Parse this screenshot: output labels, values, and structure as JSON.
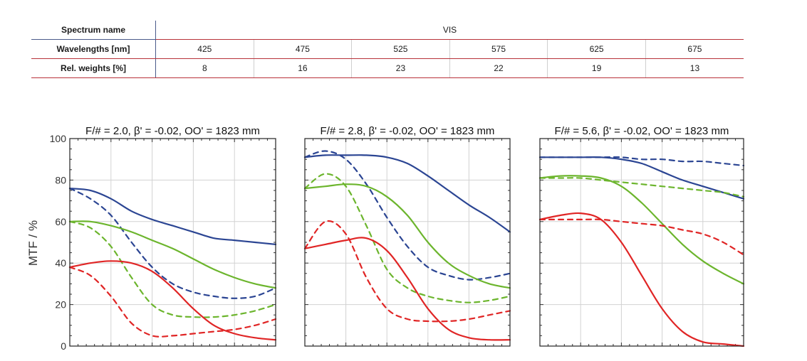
{
  "table": {
    "spectrum_label": "Spectrum name",
    "spectrum_value": "VIS",
    "wavelength_label": "Wavelengths [nm]",
    "wavelengths": [
      "425",
      "475",
      "525",
      "575",
      "625",
      "675"
    ],
    "weights_label": "Rel. weights [%]",
    "weights": [
      "8",
      "16",
      "23",
      "22",
      "19",
      "13"
    ]
  },
  "chart_data": {
    "type": "line",
    "ylabel": "MTF / %",
    "ylim": [
      0,
      100
    ],
    "yticks": [
      "0",
      "20",
      "40",
      "60",
      "80",
      "100"
    ],
    "grid": true,
    "colors": {
      "blue": "#2b4593",
      "green": "#6cb52d",
      "red": "#e02525"
    },
    "panels": [
      {
        "title": "F/# = 2.0, β' = -0.02, OO' = 1823 mm",
        "series": [
          {
            "color": "blue",
            "dash": false,
            "x": [
              0,
              0.1,
              0.2,
              0.3,
              0.4,
              0.5,
              0.6,
              0.7,
              0.8,
              0.9,
              1.0
            ],
            "y": [
              76,
              75,
              71,
              65,
              61,
              58,
              55,
              52,
              51,
              50,
              49
            ]
          },
          {
            "color": "blue",
            "dash": true,
            "x": [
              0,
              0.1,
              0.2,
              0.3,
              0.4,
              0.5,
              0.6,
              0.7,
              0.8,
              0.9,
              1.0
            ],
            "y": [
              76,
              71,
              63,
              50,
              38,
              30,
              26,
              24,
              23,
              24,
              28
            ]
          },
          {
            "color": "green",
            "dash": false,
            "x": [
              0,
              0.1,
              0.2,
              0.3,
              0.4,
              0.5,
              0.6,
              0.7,
              0.8,
              0.9,
              1.0
            ],
            "y": [
              60,
              60,
              58,
              55,
              51,
              47,
              42,
              37,
              33,
              30,
              28
            ]
          },
          {
            "color": "green",
            "dash": true,
            "x": [
              0,
              0.1,
              0.2,
              0.3,
              0.4,
              0.5,
              0.6,
              0.7,
              0.8,
              0.9,
              1.0
            ],
            "y": [
              60,
              57,
              48,
              33,
              20,
              15,
              14,
              14,
              15,
              17,
              20
            ]
          },
          {
            "color": "red",
            "dash": false,
            "x": [
              0,
              0.1,
              0.2,
              0.3,
              0.4,
              0.5,
              0.6,
              0.7,
              0.8,
              0.9,
              1.0
            ],
            "y": [
              38,
              40,
              41,
              40,
              36,
              28,
              18,
              10,
              6,
              4,
              3
            ]
          },
          {
            "color": "red",
            "dash": true,
            "x": [
              0,
              0.1,
              0.2,
              0.3,
              0.4,
              0.5,
              0.6,
              0.7,
              0.8,
              0.9,
              1.0
            ],
            "y": [
              38,
              34,
              24,
              11,
              5,
              5,
              6,
              7,
              8,
              10,
              13
            ]
          }
        ]
      },
      {
        "title": "F/# = 2.8, β' = -0.02, OO' = 1823 mm",
        "series": [
          {
            "color": "blue",
            "dash": false,
            "x": [
              0,
              0.1,
              0.2,
              0.3,
              0.4,
              0.5,
              0.6,
              0.7,
              0.8,
              0.9,
              1.0
            ],
            "y": [
              91,
              92,
              92,
              92,
              91,
              88,
              82,
              75,
              68,
              62,
              55
            ]
          },
          {
            "color": "blue",
            "dash": true,
            "x": [
              0,
              0.1,
              0.2,
              0.3,
              0.4,
              0.5,
              0.6,
              0.7,
              0.8,
              0.9,
              1.0
            ],
            "y": [
              91,
              94,
              90,
              78,
              62,
              48,
              38,
              34,
              32,
              33,
              35
            ]
          },
          {
            "color": "green",
            "dash": false,
            "x": [
              0,
              0.1,
              0.2,
              0.3,
              0.4,
              0.5,
              0.6,
              0.7,
              0.8,
              0.9,
              1.0
            ],
            "y": [
              76,
              77,
              78,
              77,
              72,
              63,
              50,
              40,
              34,
              30,
              28
            ]
          },
          {
            "color": "green",
            "dash": true,
            "x": [
              0,
              0.1,
              0.2,
              0.3,
              0.4,
              0.5,
              0.6,
              0.7,
              0.8,
              0.9,
              1.0
            ],
            "y": [
              76,
              83,
              77,
              58,
              37,
              28,
              24,
              22,
              21,
              22,
              24
            ]
          },
          {
            "color": "red",
            "dash": false,
            "x": [
              0,
              0.1,
              0.2,
              0.3,
              0.4,
              0.5,
              0.6,
              0.7,
              0.8,
              0.9,
              1.0
            ],
            "y": [
              47,
              49,
              51,
              52,
              46,
              33,
              18,
              8,
              4,
              3,
              3
            ]
          },
          {
            "color": "red",
            "dash": true,
            "x": [
              0,
              0.1,
              0.2,
              0.3,
              0.4,
              0.5,
              0.6,
              0.7,
              0.8,
              0.9,
              1.0
            ],
            "y": [
              47,
              60,
              54,
              33,
              18,
              13,
              12,
              12,
              13,
              15,
              17
            ]
          }
        ]
      },
      {
        "title": "F/# = 5.6, β' = -0.02, OO' = 1823 mm",
        "series": [
          {
            "color": "blue",
            "dash": false,
            "x": [
              0,
              0.1,
              0.2,
              0.3,
              0.4,
              0.5,
              0.6,
              0.7,
              0.8,
              0.9,
              1.0
            ],
            "y": [
              91,
              91,
              91,
              91,
              90,
              88,
              84,
              80,
              77,
              74,
              71
            ]
          },
          {
            "color": "blue",
            "dash": true,
            "x": [
              0,
              0.1,
              0.2,
              0.3,
              0.4,
              0.5,
              0.6,
              0.7,
              0.8,
              0.9,
              1.0
            ],
            "y": [
              91,
              91,
              91,
              91,
              91,
              90,
              90,
              89,
              89,
              88,
              87
            ]
          },
          {
            "color": "green",
            "dash": false,
            "x": [
              0,
              0.1,
              0.2,
              0.3,
              0.4,
              0.5,
              0.6,
              0.7,
              0.8,
              0.9,
              1.0
            ],
            "y": [
              81,
              82,
              82,
              81,
              77,
              69,
              59,
              49,
              41,
              35,
              30
            ]
          },
          {
            "color": "green",
            "dash": true,
            "x": [
              0,
              0.1,
              0.2,
              0.3,
              0.4,
              0.5,
              0.6,
              0.7,
              0.8,
              0.9,
              1.0
            ],
            "y": [
              81,
              81,
              81,
              80,
              79,
              78,
              77,
              76,
              75,
              74,
              72
            ]
          },
          {
            "color": "red",
            "dash": false,
            "x": [
              0,
              0.1,
              0.2,
              0.3,
              0.4,
              0.5,
              0.6,
              0.7,
              0.8,
              0.9,
              1.0
            ],
            "y": [
              61,
              63,
              64,
              61,
              50,
              34,
              18,
              7,
              2,
              1,
              0
            ]
          },
          {
            "color": "red",
            "dash": true,
            "x": [
              0,
              0.1,
              0.2,
              0.3,
              0.4,
              0.5,
              0.6,
              0.7,
              0.8,
              0.9,
              1.0
            ],
            "y": [
              61,
              61,
              61,
              61,
              60,
              59,
              58,
              56,
              54,
              50,
              44
            ]
          }
        ]
      }
    ]
  }
}
